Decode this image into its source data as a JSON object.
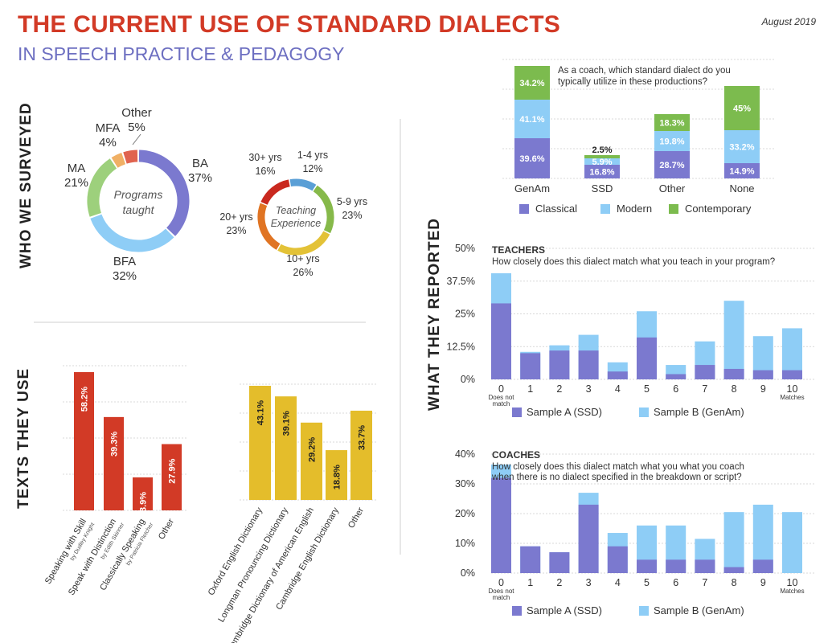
{
  "header": {
    "title": "THE CURRENT USE OF STANDARD DIALECTS",
    "subtitle": "IN SPEECH PRACTICE & PEDAGOGY",
    "date": "August 2019"
  },
  "sections": {
    "surveyed": "WHO WE SURVEYED",
    "texts": "TEXTS THEY USE",
    "reported": "WHAT THEY REPORTED"
  },
  "colors": {
    "red": "#d23a26",
    "purple": "#7b79cf",
    "lightblue": "#8ecdf6",
    "green": "#7cbb4e",
    "yellow": "#e4bd2b"
  },
  "chart_data": [
    {
      "id": "programs",
      "type": "pie",
      "title": "Programs taught",
      "slices": [
        {
          "label": "BA",
          "value": 37,
          "color": "#7b79cf"
        },
        {
          "label": "BFA",
          "value": 32,
          "color": "#8ecdf6"
        },
        {
          "label": "MA",
          "value": 21,
          "color": "#9dd07c"
        },
        {
          "label": "MFA",
          "value": 4,
          "color": "#f0b065"
        },
        {
          "label": "Other",
          "value": 5,
          "color": "#e0634f"
        }
      ]
    },
    {
      "id": "experience",
      "type": "pie",
      "title": "Teaching Experience",
      "slices": [
        {
          "label": "1-4 yrs",
          "value": 12,
          "color": "#5a9fd6"
        },
        {
          "label": "5-9 yrs",
          "value": 23,
          "color": "#86b94a"
        },
        {
          "label": "10+ yrs",
          "value": 26,
          "color": "#e3c237"
        },
        {
          "label": "20+ yrs",
          "value": 23,
          "color": "#e07423"
        },
        {
          "label": "30+ yrs",
          "value": 16,
          "color": "#c9291f"
        }
      ]
    },
    {
      "id": "dialect_use",
      "type": "bar",
      "title": "As a coach, which standard dialect do you typically utilize in these productions?",
      "categories": [
        "GenAm",
        "SSD",
        "Other",
        "None"
      ],
      "series": [
        {
          "name": "Classical",
          "values": [
            39.6,
            16.8,
            28.7,
            14.9
          ],
          "color": "#7b79cf"
        },
        {
          "name": "Modern",
          "values": [
            41.1,
            5.9,
            19.8,
            33.2
          ],
          "color": "#8ecdf6"
        },
        {
          "name": "Contemporary",
          "values": [
            34.2,
            2.5,
            18.3,
            45
          ],
          "color": "#7cbb4e"
        }
      ],
      "labels": [
        [
          "39.6%",
          "41.1%",
          "34.2%"
        ],
        [
          "16.8%",
          "5.9%",
          "2.5%"
        ],
        [
          "28.7%",
          "19.8%",
          "18.3%"
        ],
        [
          "14.9%",
          "33.2%",
          "45%"
        ]
      ]
    },
    {
      "id": "texts_red",
      "type": "bar",
      "categories": [
        "Speaking with Skill",
        "Speak with Distinction",
        "Classically Speaking",
        "Other"
      ],
      "subtitles": [
        "by Dudley Knight",
        "by Edith Skinner",
        "by Patricia Fletcher",
        ""
      ],
      "values": [
        58.2,
        39.3,
        13.9,
        27.9
      ],
      "labels": [
        "58.2%",
        "39.3%",
        "13.9%",
        "27.9%"
      ]
    },
    {
      "id": "texts_yellow",
      "type": "bar",
      "categories": [
        "Oxford English Dictionary",
        "Longman Pronouncing Dictionary",
        "Cambridge Dictionary of American English",
        "Cambridge English Dictionary",
        "Other"
      ],
      "values": [
        43.1,
        39.1,
        29.2,
        18.8,
        33.7
      ],
      "labels": [
        "43.1%",
        "39.1%",
        "29.2%",
        "18.8%",
        "33.7%"
      ]
    },
    {
      "id": "teachers",
      "type": "bar",
      "title": "TEACHERS",
      "question": "How closely does this dialect match what you teach in your program?",
      "categories": [
        "0",
        "1",
        "2",
        "3",
        "4",
        "5",
        "6",
        "7",
        "8",
        "9",
        "10"
      ],
      "cat_notes": {
        "0": "Does not match",
        "10": "Matches"
      },
      "yticks": [
        "0%",
        "12.5%",
        "25%",
        "37.5%",
        "50%"
      ],
      "ylim": [
        0,
        50
      ],
      "series": [
        {
          "name": "Sample A (SSD)",
          "values": [
            29,
            10,
            11,
            11,
            3,
            16,
            2,
            5.5,
            4,
            3.5,
            3.5
          ]
        },
        {
          "name": "Sample B (GenAm)",
          "values": [
            40.5,
            10.5,
            13,
            17,
            6.5,
            26,
            5.5,
            14.5,
            30,
            16.5,
            19.5
          ]
        }
      ]
    },
    {
      "id": "coaches",
      "type": "bar",
      "title": "COACHES",
      "question": "How closely does this dialect match what you what you coach when there is no dialect specified in the breakdown or script?",
      "categories": [
        "0",
        "1",
        "2",
        "3",
        "4",
        "5",
        "6",
        "7",
        "8",
        "9",
        "10"
      ],
      "cat_notes": {
        "0": "Does not match",
        "10": "Matches"
      },
      "yticks": [
        "0%",
        "10%",
        "20%",
        "30%",
        "40%"
      ],
      "ylim": [
        0,
        40
      ],
      "series": [
        {
          "name": "Sample A (SSD)",
          "values": [
            32,
            9,
            7,
            23,
            9,
            4.5,
            4.5,
            4.5,
            2,
            4.5,
            0
          ]
        },
        {
          "name": "Sample B (GenAm)",
          "values": [
            36.5,
            9,
            7,
            27,
            13.5,
            16,
            16,
            11.5,
            20.5,
            23,
            20.5
          ]
        }
      ]
    }
  ]
}
